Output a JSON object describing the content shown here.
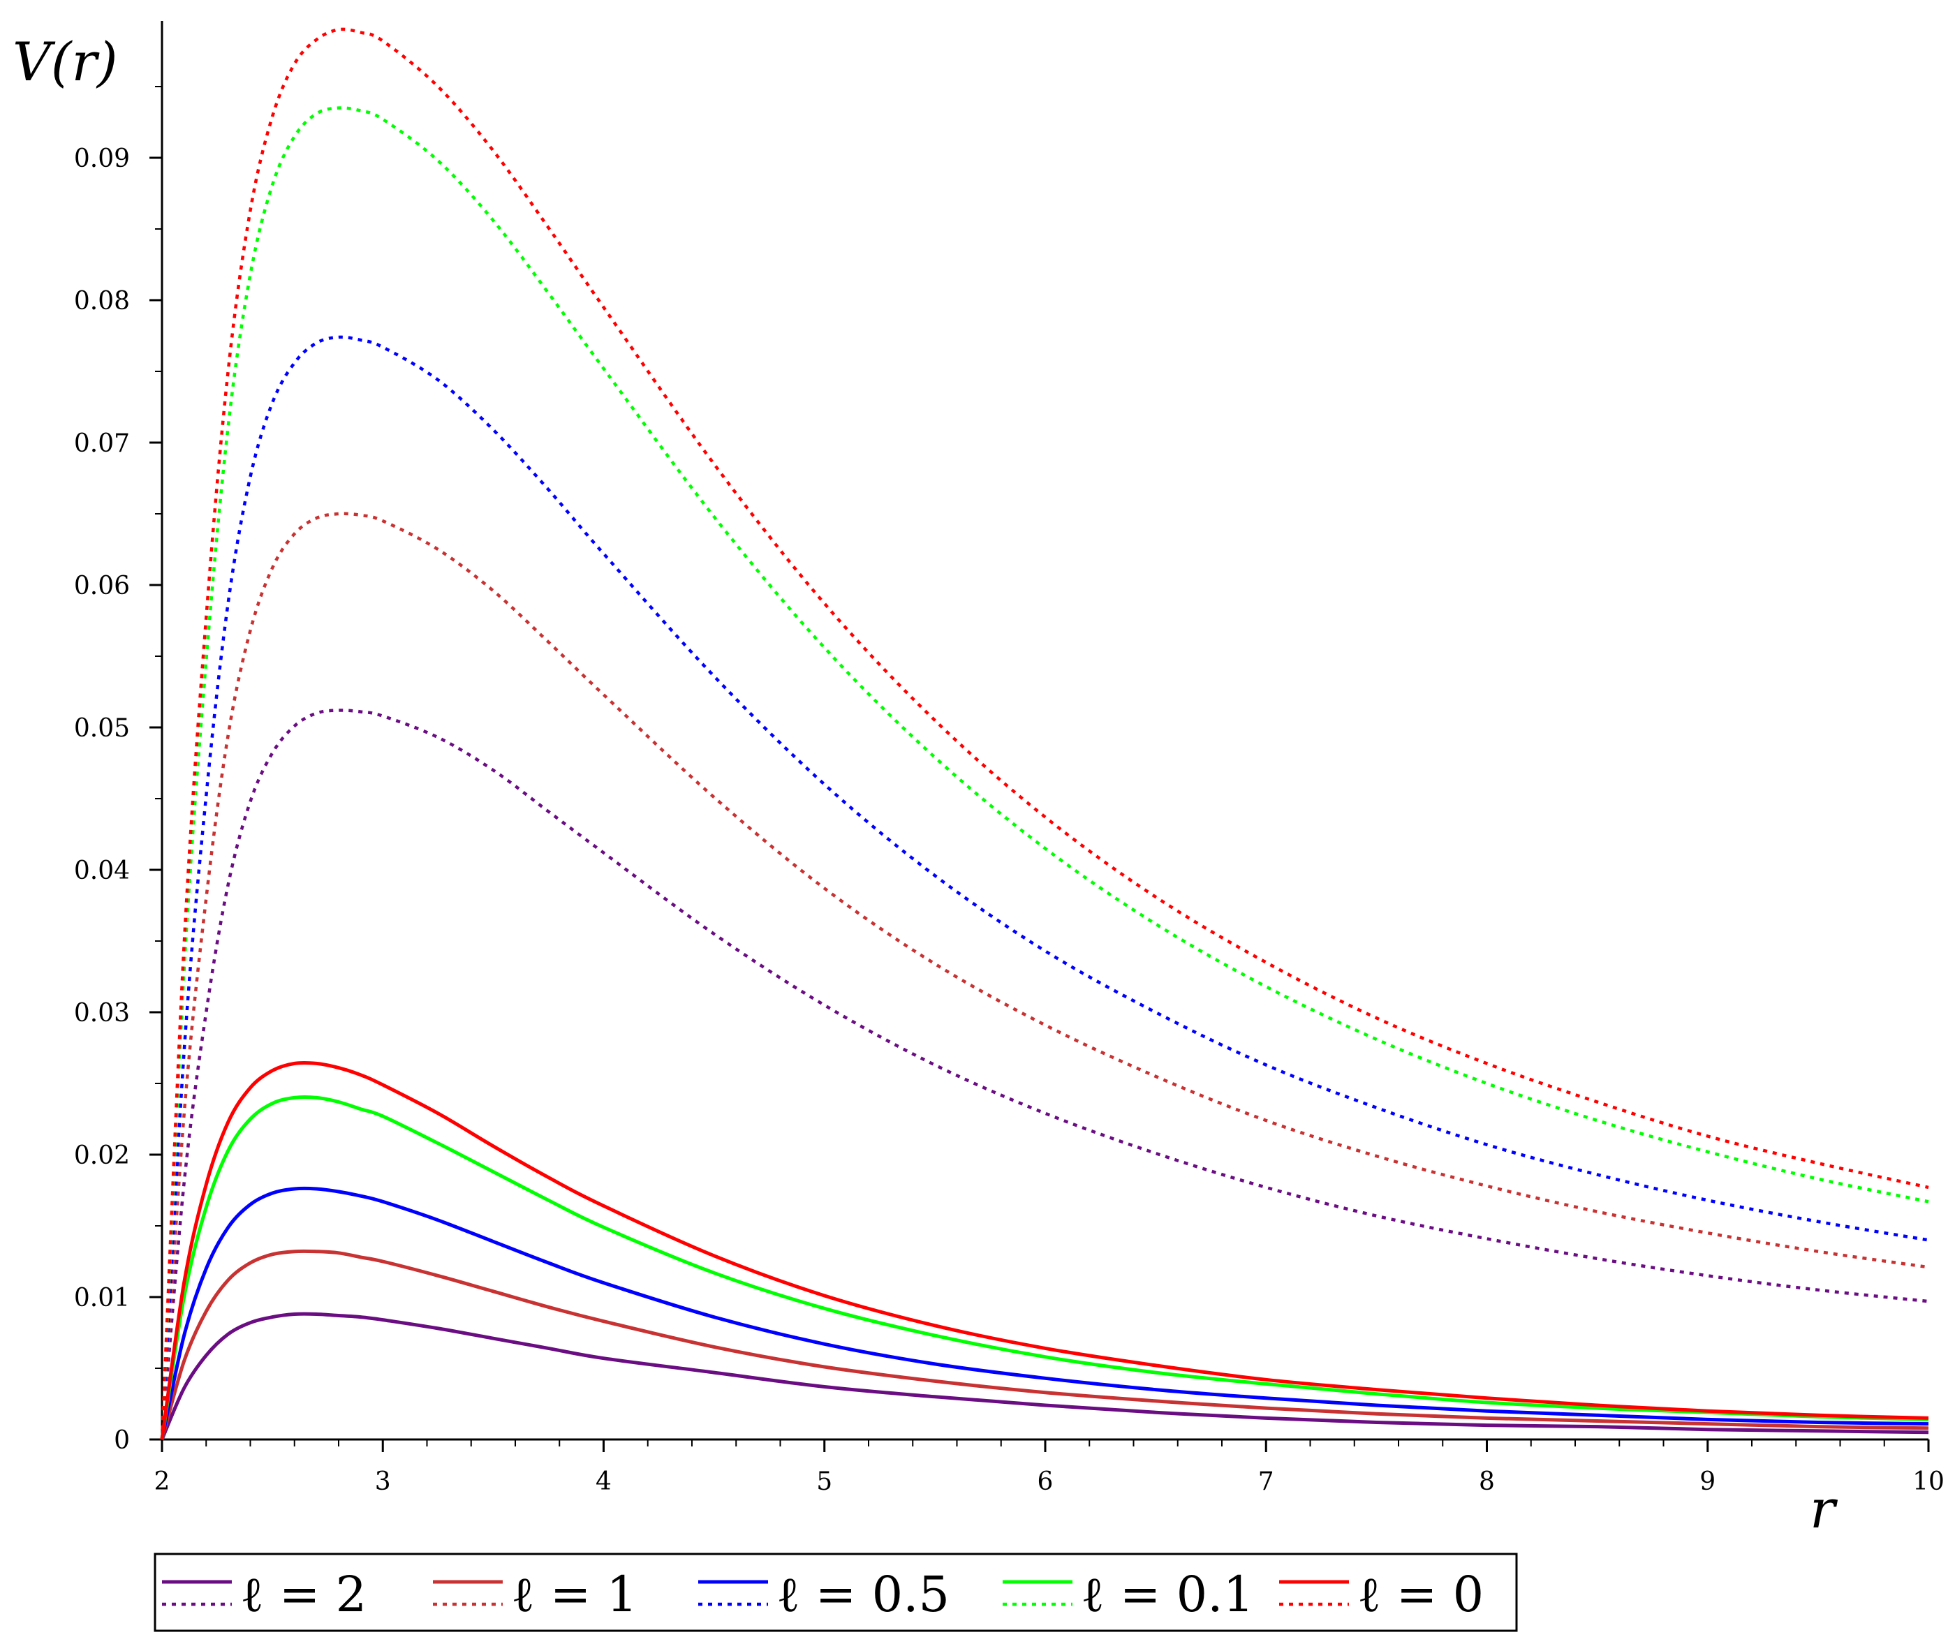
{
  "chart_data": {
    "type": "line",
    "title": "",
    "xlabel": "r",
    "ylabel": "V(r)",
    "xlim": [
      2,
      10
    ],
    "ylim": [
      0,
      0.1
    ],
    "xticks": [
      "2",
      "3",
      "4",
      "5",
      "6",
      "7",
      "8",
      "9",
      "10"
    ],
    "yticks": [
      "0",
      "0.01",
      "0.02",
      "0.03",
      "0.04",
      "0.05",
      "0.06",
      "0.07",
      "0.08",
      "0.09"
    ],
    "grid": false,
    "legend_position": "bottom",
    "legend": [
      {
        "label": "ℓ = 2",
        "color": "#6a0d83"
      },
      {
        "label": "ℓ = 1",
        "color": "#c83232"
      },
      {
        "label": "ℓ = 0.5",
        "color": "#0000ff"
      },
      {
        "label": "ℓ = 0.1",
        "color": "#00ff00"
      },
      {
        "label": "ℓ = 0",
        "color": "#ff0000"
      }
    ],
    "series": [
      {
        "color": "#6a0d83",
        "style": "solid",
        "x": [
          2,
          2.1,
          2.2,
          2.3,
          2.4,
          2.5,
          2.6,
          2.7,
          2.8,
          2.9,
          3,
          3.25,
          3.5,
          3.75,
          4,
          4.5,
          5,
          5.5,
          6,
          6.5,
          7,
          7.5,
          8,
          8.5,
          9,
          9.5,
          10
        ],
        "y": [
          0,
          0.0036,
          0.0059,
          0.0074,
          0.0082,
          0.0086,
          0.0088,
          0.0088,
          0.0087,
          0.0086,
          0.0084,
          0.0078,
          0.0071,
          0.0064,
          0.0057,
          0.0047,
          0.0037,
          0.003,
          0.0024,
          0.0019,
          0.0015,
          0.0012,
          0.001,
          0.0009,
          0.0007,
          0.0006,
          0.0005
        ]
      },
      {
        "color": "#c83232",
        "style": "solid",
        "x": [
          2,
          2.1,
          2.2,
          2.3,
          2.4,
          2.5,
          2.6,
          2.7,
          2.8,
          2.9,
          3,
          3.25,
          3.5,
          3.75,
          4,
          4.5,
          5,
          5.5,
          6,
          6.5,
          7,
          7.5,
          8,
          8.5,
          9,
          9.5,
          10
        ],
        "y": [
          0,
          0.0055,
          0.009,
          0.0112,
          0.0124,
          0.013,
          0.0132,
          0.0132,
          0.0131,
          0.0128,
          0.0125,
          0.0115,
          0.0104,
          0.0093,
          0.0083,
          0.0065,
          0.0051,
          0.0041,
          0.0033,
          0.0027,
          0.0022,
          0.0018,
          0.0015,
          0.0013,
          0.0011,
          0.0009,
          0.0008
        ]
      },
      {
        "color": "#0000ff",
        "style": "solid",
        "x": [
          2,
          2.1,
          2.2,
          2.3,
          2.4,
          2.5,
          2.6,
          2.7,
          2.8,
          2.9,
          3,
          3.25,
          3.5,
          3.75,
          4,
          4.5,
          5,
          5.5,
          6,
          6.5,
          7,
          7.5,
          8,
          8.5,
          9,
          9.5,
          10
        ],
        "y": [
          0,
          0.0073,
          0.012,
          0.0149,
          0.0165,
          0.0173,
          0.0176,
          0.0176,
          0.0174,
          0.0171,
          0.0167,
          0.0154,
          0.0139,
          0.0124,
          0.011,
          0.0086,
          0.0067,
          0.0053,
          0.0043,
          0.0035,
          0.0029,
          0.0024,
          0.002,
          0.0017,
          0.0014,
          0.0012,
          0.0011
        ]
      },
      {
        "color": "#00ff00",
        "style": "solid",
        "x": [
          2,
          2.1,
          2.2,
          2.3,
          2.4,
          2.5,
          2.6,
          2.7,
          2.8,
          2.9,
          3,
          3.25,
          3.5,
          3.75,
          4,
          4.5,
          5,
          5.5,
          6,
          6.5,
          7,
          7.5,
          8,
          8.5,
          9,
          9.5,
          10
        ],
        "y": [
          0,
          0.01,
          0.0163,
          0.0203,
          0.0225,
          0.0236,
          0.024,
          0.024,
          0.0237,
          0.0232,
          0.0227,
          0.0208,
          0.0188,
          0.0168,
          0.0149,
          0.0117,
          0.0092,
          0.0073,
          0.0058,
          0.0047,
          0.0039,
          0.0032,
          0.0026,
          0.0022,
          0.0019,
          0.0016,
          0.0014
        ]
      },
      {
        "color": "#ff0000",
        "style": "solid",
        "x": [
          2,
          2.1,
          2.2,
          2.3,
          2.4,
          2.5,
          2.6,
          2.7,
          2.8,
          2.9,
          3,
          3.25,
          3.5,
          3.75,
          4,
          4.5,
          5,
          5.5,
          6,
          6.5,
          7,
          7.5,
          8,
          8.5,
          9,
          9.5,
          10
        ],
        "y": [
          0,
          0.011,
          0.0179,
          0.0223,
          0.0247,
          0.0259,
          0.0264,
          0.0264,
          0.0261,
          0.0256,
          0.0249,
          0.0229,
          0.0206,
          0.0184,
          0.0164,
          0.0129,
          0.0101,
          0.008,
          0.0064,
          0.0052,
          0.0042,
          0.0035,
          0.0029,
          0.0024,
          0.002,
          0.0017,
          0.0015
        ]
      },
      {
        "color": "#6a0d83",
        "style": "dotted",
        "x": [
          2,
          2.1,
          2.2,
          2.3,
          2.4,
          2.5,
          2.6,
          2.7,
          2.8,
          2.9,
          3,
          3.25,
          3.5,
          3.75,
          4,
          4.5,
          5,
          5.5,
          6,
          6.5,
          7,
          7.5,
          8,
          8.5,
          9,
          9.5,
          10
        ],
        "y": [
          0,
          0.018,
          0.03,
          0.039,
          0.0448,
          0.0482,
          0.0501,
          0.051,
          0.0512,
          0.0511,
          0.0508,
          0.0493,
          0.047,
          0.0441,
          0.0412,
          0.0355,
          0.0305,
          0.0263,
          0.0229,
          0.0201,
          0.0177,
          0.0157,
          0.0141,
          0.0127,
          0.0115,
          0.0105,
          0.0097
        ]
      },
      {
        "color": "#c83232",
        "style": "dotted",
        "x": [
          2,
          2.1,
          2.2,
          2.3,
          2.4,
          2.5,
          2.6,
          2.7,
          2.8,
          2.9,
          3,
          3.25,
          3.5,
          3.75,
          4,
          4.5,
          5,
          5.5,
          6,
          6.5,
          7,
          7.5,
          8,
          8.5,
          9,
          9.5,
          10
        ],
        "y": [
          0,
          0.0228,
          0.038,
          0.0495,
          0.0568,
          0.0612,
          0.0636,
          0.0647,
          0.065,
          0.0649,
          0.0645,
          0.0625,
          0.0596,
          0.056,
          0.0523,
          0.0451,
          0.0387,
          0.0334,
          0.0291,
          0.0255,
          0.0224,
          0.0199,
          0.0178,
          0.016,
          0.0145,
          0.0132,
          0.0121
        ]
      },
      {
        "color": "#0000ff",
        "style": "dotted",
        "x": [
          2,
          2.1,
          2.2,
          2.3,
          2.4,
          2.5,
          2.6,
          2.7,
          2.8,
          2.9,
          3,
          3.25,
          3.5,
          3.75,
          4,
          4.5,
          5,
          5.5,
          6,
          6.5,
          7,
          7.5,
          8,
          8.5,
          9,
          9.5,
          10
        ],
        "y": [
          0,
          0.0272,
          0.0452,
          0.0588,
          0.0676,
          0.0728,
          0.0756,
          0.077,
          0.0774,
          0.0772,
          0.0767,
          0.0744,
          0.0709,
          0.0667,
          0.0622,
          0.0536,
          0.046,
          0.0396,
          0.0343,
          0.03,
          0.0263,
          0.0233,
          0.0207,
          0.0186,
          0.0168,
          0.0153,
          0.014
        ]
      },
      {
        "color": "#00ff00",
        "style": "dotted",
        "x": [
          2,
          2.1,
          2.2,
          2.3,
          2.4,
          2.5,
          2.6,
          2.7,
          2.8,
          2.9,
          3,
          3.25,
          3.5,
          3.75,
          4,
          4.5,
          5,
          5.5,
          6,
          6.5,
          7,
          7.5,
          8,
          8.5,
          9,
          9.5,
          10
        ],
        "y": [
          0,
          0.0329,
          0.0547,
          0.0712,
          0.0818,
          0.0881,
          0.0915,
          0.0931,
          0.0935,
          0.0933,
          0.0927,
          0.0898,
          0.0856,
          0.0805,
          0.0752,
          0.0648,
          0.0556,
          0.0479,
          0.0415,
          0.0362,
          0.0318,
          0.0281,
          0.025,
          0.0224,
          0.0202,
          0.0183,
          0.0167
        ]
      },
      {
        "color": "#ff0000",
        "style": "dotted",
        "x": [
          2,
          2.1,
          2.2,
          2.3,
          2.4,
          2.5,
          2.6,
          2.7,
          2.8,
          2.9,
          3,
          3.25,
          3.5,
          3.75,
          4,
          4.5,
          5,
          5.5,
          6,
          6.5,
          7,
          7.5,
          8,
          8.5,
          9,
          9.5,
          10
        ],
        "y": [
          0,
          0.0347,
          0.0577,
          0.0751,
          0.0863,
          0.0929,
          0.0966,
          0.0983,
          0.099,
          0.0988,
          0.0982,
          0.095,
          0.0905,
          0.0851,
          0.0795,
          0.0685,
          0.0587,
          0.0505,
          0.0437,
          0.0381,
          0.0335,
          0.0296,
          0.0264,
          0.0237,
          0.0213,
          0.0194,
          0.0177
        ]
      }
    ]
  }
}
